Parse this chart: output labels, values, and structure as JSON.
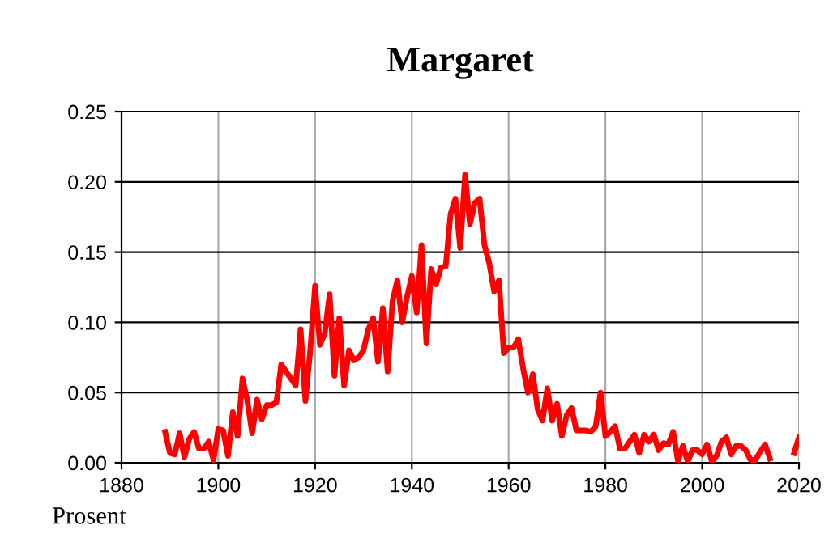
{
  "chart_data": {
    "type": "line",
    "title": "Margaret",
    "ylabel": "Prosent",
    "x": [
      1889,
      1890,
      1891,
      1892,
      1893,
      1894,
      1895,
      1896,
      1897,
      1898,
      1899,
      1900,
      1901,
      1902,
      1903,
      1904,
      1905,
      1906,
      1907,
      1908,
      1909,
      1910,
      1911,
      1912,
      1913,
      1914,
      1915,
      1916,
      1917,
      1918,
      1919,
      1920,
      1921,
      1922,
      1923,
      1924,
      1925,
      1926,
      1927,
      1928,
      1929,
      1930,
      1931,
      1932,
      1933,
      1934,
      1935,
      1936,
      1937,
      1938,
      1939,
      1940,
      1941,
      1942,
      1943,
      1944,
      1945,
      1946,
      1947,
      1948,
      1949,
      1950,
      1951,
      1952,
      1953,
      1954,
      1955,
      1956,
      1957,
      1958,
      1959,
      1960,
      1961,
      1962,
      1963,
      1964,
      1965,
      1966,
      1967,
      1968,
      1969,
      1970,
      1971,
      1972,
      1973,
      1974,
      1975,
      1976,
      1977,
      1978,
      1979,
      1980,
      1981,
      1982,
      1983,
      1984,
      1985,
      1986,
      1987,
      1988,
      1989,
      1990,
      1991,
      1992,
      1993,
      1994,
      1995,
      1996,
      1997,
      1998,
      1999,
      2000,
      2001,
      2002,
      2003,
      2004,
      2005,
      2006,
      2007,
      2008,
      2009,
      2010,
      2011,
      2012,
      2013,
      2014,
      2015,
      2019,
      2020
    ],
    "series": [
      {
        "color": "#ff0000",
        "values": [
          0.022,
          0.007,
          0.006,
          0.021,
          0.004,
          0.017,
          0.022,
          0.01,
          0.01,
          0.015,
          0.002,
          0.024,
          0.023,
          0.005,
          0.036,
          0.019,
          0.06,
          0.044,
          0.021,
          0.045,
          0.031,
          0.041,
          0.041,
          0.043,
          0.07,
          0.065,
          0.06,
          0.055,
          0.095,
          0.044,
          0.08,
          0.126,
          0.084,
          0.092,
          0.12,
          0.062,
          0.103,
          0.055,
          0.08,
          0.073,
          0.075,
          0.08,
          0.095,
          0.103,
          0.072,
          0.11,
          0.065,
          0.115,
          0.13,
          0.1,
          0.118,
          0.133,
          0.107,
          0.155,
          0.085,
          0.138,
          0.127,
          0.139,
          0.14,
          0.177,
          0.188,
          0.153,
          0.205,
          0.17,
          0.185,
          0.188,
          0.155,
          0.142,
          0.122,
          0.13,
          0.078,
          0.082,
          0.082,
          0.088,
          0.067,
          0.05,
          0.063,
          0.038,
          0.03,
          0.053,
          0.03,
          0.042,
          0.019,
          0.034,
          0.039,
          0.023,
          0.023,
          0.023,
          0.022,
          0.026,
          0.05,
          0.019,
          0.022,
          0.026,
          0.01,
          0.01,
          0.015,
          0.02,
          0.007,
          0.02,
          0.015,
          0.02,
          0.009,
          0.014,
          0.013,
          0.022,
          0.001,
          0.012,
          0.001,
          0.009,
          0.009,
          0.006,
          0.013,
          0.001,
          0.005,
          0.015,
          0.018,
          0.006,
          0.012,
          0.012,
          0.009,
          0.002,
          0.002,
          0.008,
          0.013,
          0.003,
          null,
          0.007,
          0.018
        ]
      }
    ],
    "xlim": [
      1880,
      2020
    ],
    "xticks": [
      1880,
      1900,
      1920,
      1940,
      1960,
      1980,
      2000,
      2020
    ],
    "ylim": [
      0,
      0.25
    ],
    "yticks": [
      {
        "value": 0,
        "label": "0.00"
      },
      {
        "value": 0.05,
        "label": "0.05"
      },
      {
        "value": 0.1,
        "label": "0.10"
      },
      {
        "value": 0.15,
        "label": "0.15"
      },
      {
        "value": 0.2,
        "label": "0.20"
      },
      {
        "value": 0.25,
        "label": "0.25"
      }
    ],
    "grid": true,
    "marker": "none",
    "line_style": "solid",
    "legend": false
  }
}
